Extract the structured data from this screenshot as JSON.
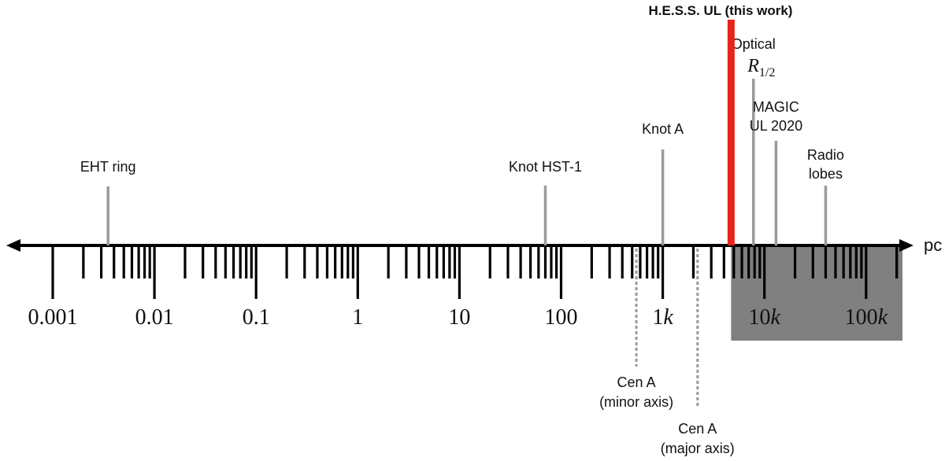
{
  "axis": {
    "unit": "pc",
    "decades": [
      {
        "value": 0.001,
        "label": "0.001"
      },
      {
        "value": 0.01,
        "label": "0.01"
      },
      {
        "value": 0.1,
        "label": "0.1"
      },
      {
        "value": 1,
        "label": "1"
      },
      {
        "value": 10,
        "label": "10"
      },
      {
        "value": 100,
        "label": "100"
      },
      {
        "value": 1000,
        "label": "1",
        "suffix": "k"
      },
      {
        "value": 10000,
        "label": "10",
        "suffix": "k"
      },
      {
        "value": 100000,
        "label": "100",
        "suffix": "k"
      }
    ],
    "range_pc": [
      0.001,
      300000
    ],
    "scale": "log"
  },
  "highlight": {
    "name": "H.E.S.S. UL (this work)",
    "value_pc": 4700,
    "color": "#e8231a",
    "shaded_region_pc": [
      4700,
      300000
    ],
    "shade_color": "#808080"
  },
  "markers": [
    {
      "id": "eht-ring",
      "lines": [
        "EHT ring"
      ],
      "value_pc": 0.0035,
      "color": "#9a9a9a"
    },
    {
      "id": "knot-hst-1",
      "lines": [
        "Knot HST-1"
      ],
      "value_pc": 70,
      "color": "#9a9a9a"
    },
    {
      "id": "knot-a",
      "lines": [
        "Knot A"
      ],
      "value_pc": 1000,
      "color": "#9a9a9a"
    },
    {
      "id": "optical-r-half",
      "lines": [
        "Optical"
      ],
      "symbol": "R",
      "subscript": "1/2",
      "value_pc": 7800,
      "color": "#9a9a9a"
    },
    {
      "id": "magic-ul-2020",
      "lines": [
        "MAGIC",
        "UL 2020"
      ],
      "value_pc": 13000,
      "color": "#9a9a9a"
    },
    {
      "id": "radio-lobes",
      "lines": [
        "Radio",
        "lobes"
      ],
      "value_pc": 40000,
      "color": "#9a9a9a"
    }
  ],
  "below_markers": [
    {
      "id": "cen-a-minor",
      "lines": [
        "Cen A",
        "(minor axis)"
      ],
      "value_pc": 550,
      "color": "#9a9a9a"
    },
    {
      "id": "cen-a-major",
      "lines": [
        "Cen A",
        "(major axis)"
      ],
      "value_pc": 2200,
      "color": "#9a9a9a"
    }
  ]
}
